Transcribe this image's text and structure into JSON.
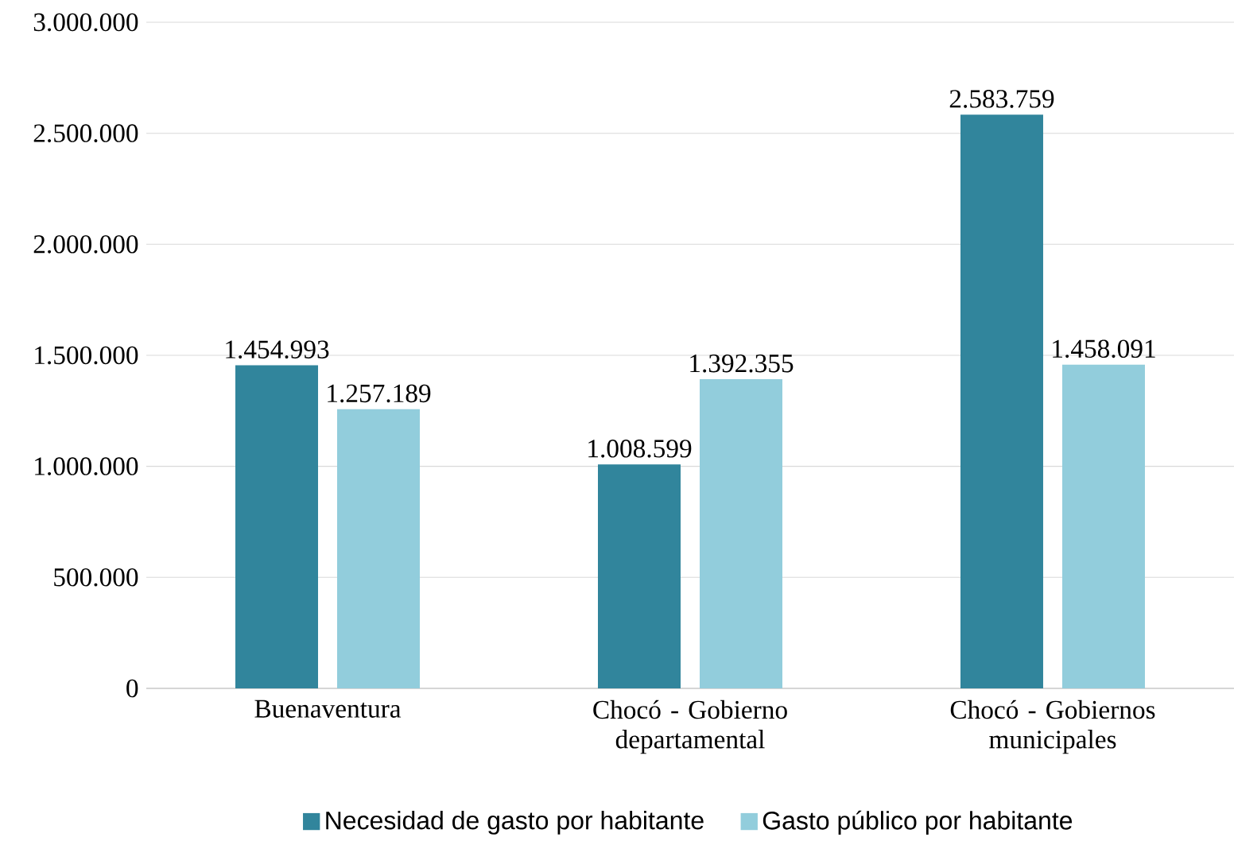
{
  "chart_data": {
    "type": "bar",
    "categories": [
      "Buenaventura",
      "Chocó - Gobierno departamental",
      "Chocó - Gobiernos municipales"
    ],
    "series": [
      {
        "name": "Necesidad de gasto por habitante",
        "color": "#31859c",
        "values": [
          1454993,
          1008599,
          2583759
        ],
        "value_labels": [
          "1.454.993",
          "1.008.599",
          "2.583.759"
        ]
      },
      {
        "name": "Gasto público por habitante",
        "color": "#92cddc",
        "values": [
          1257189,
          1392355,
          1458091
        ],
        "value_labels": [
          "1.257.189",
          "1.392.355",
          "1.458.091"
        ]
      }
    ],
    "ylim": [
      0,
      3000000
    ],
    "yticks": [
      0,
      {
        "value": 500000,
        "label": "500.000"
      },
      {
        "value": 1000000,
        "label": "1.000.000"
      },
      {
        "value": 1500000,
        "label": "1.500.000"
      },
      {
        "value": 2000000,
        "label": "2.000.000"
      },
      {
        "value": 2500000,
        "label": "2.500.000"
      },
      {
        "value": 3000000,
        "label": "3.000.000"
      }
    ],
    "grid": "y",
    "legend": "bottom"
  }
}
